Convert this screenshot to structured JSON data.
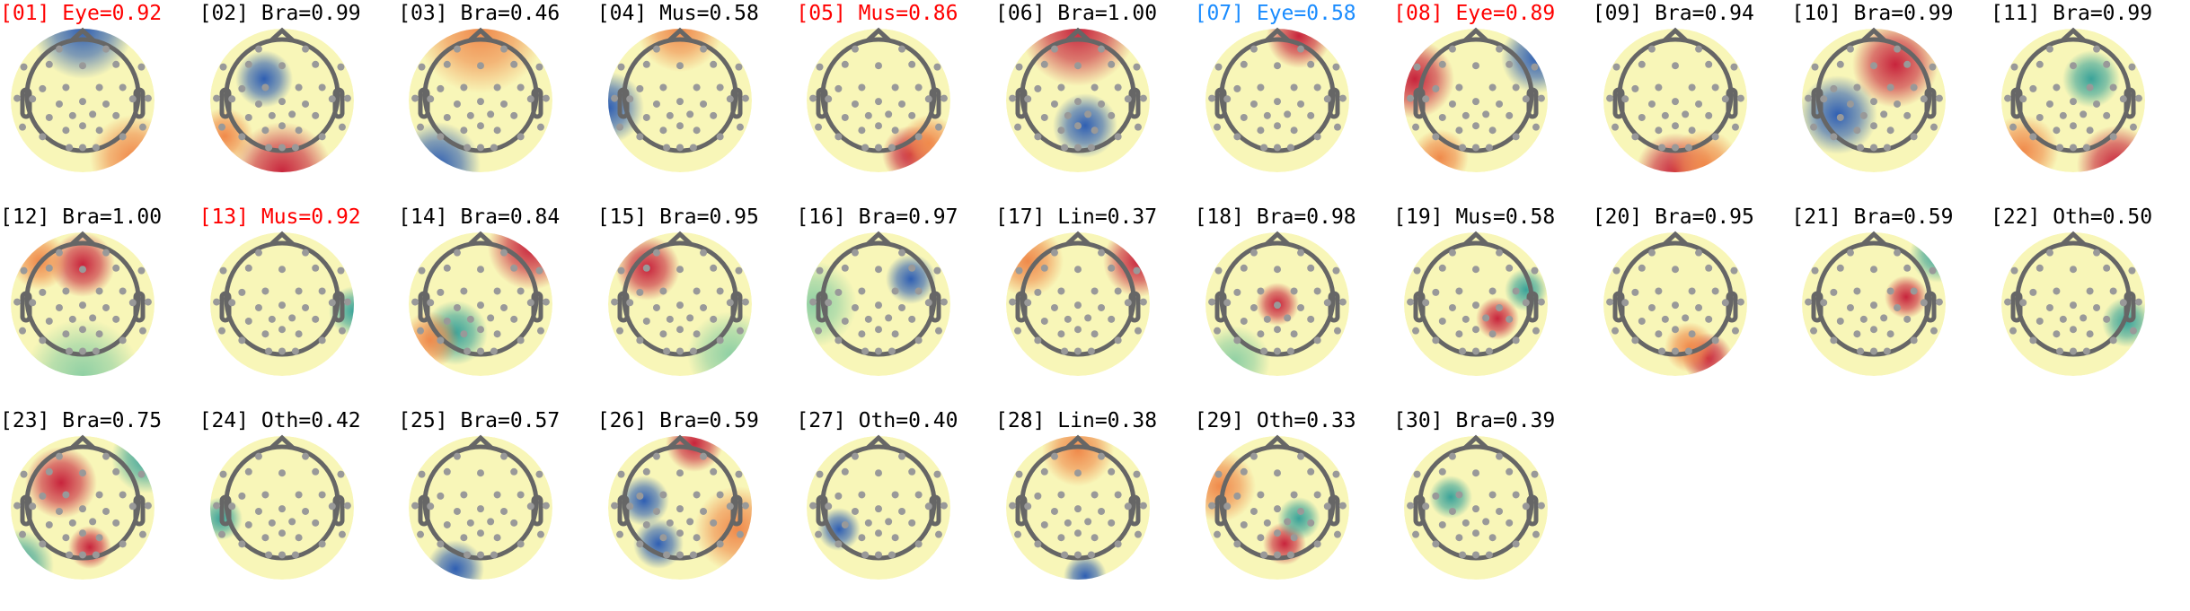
{
  "colors": {
    "default": "#000000",
    "eye_red": "#ff0000",
    "eye_blue": "#1a8cff",
    "muscle_red": "#ff0000"
  },
  "components": [
    {
      "id": "01",
      "label": "Eye",
      "score": "0.92",
      "color": "#ff0000"
    },
    {
      "id": "02",
      "label": "Bra",
      "score": "0.99",
      "color": "#000000"
    },
    {
      "id": "03",
      "label": "Bra",
      "score": "0.46",
      "color": "#000000"
    },
    {
      "id": "04",
      "label": "Mus",
      "score": "0.58",
      "color": "#000000"
    },
    {
      "id": "05",
      "label": "Mus",
      "score": "0.86",
      "color": "#ff0000"
    },
    {
      "id": "06",
      "label": "Bra",
      "score": "1.00",
      "color": "#000000"
    },
    {
      "id": "07",
      "label": "Eye",
      "score": "0.58",
      "color": "#1a8cff"
    },
    {
      "id": "08",
      "label": "Eye",
      "score": "0.89",
      "color": "#ff0000"
    },
    {
      "id": "09",
      "label": "Bra",
      "score": "0.94",
      "color": "#000000"
    },
    {
      "id": "10",
      "label": "Bra",
      "score": "0.99",
      "color": "#000000"
    },
    {
      "id": "11",
      "label": "Bra",
      "score": "0.99",
      "color": "#000000"
    },
    {
      "id": "12",
      "label": "Bra",
      "score": "1.00",
      "color": "#000000"
    },
    {
      "id": "13",
      "label": "Mus",
      "score": "0.92",
      "color": "#ff0000"
    },
    {
      "id": "14",
      "label": "Bra",
      "score": "0.84",
      "color": "#000000"
    },
    {
      "id": "15",
      "label": "Bra",
      "score": "0.95",
      "color": "#000000"
    },
    {
      "id": "16",
      "label": "Bra",
      "score": "0.97",
      "color": "#000000"
    },
    {
      "id": "17",
      "label": "Lin",
      "score": "0.37",
      "color": "#000000"
    },
    {
      "id": "18",
      "label": "Bra",
      "score": "0.98",
      "color": "#000000"
    },
    {
      "id": "19",
      "label": "Mus",
      "score": "0.58",
      "color": "#000000"
    },
    {
      "id": "20",
      "label": "Bra",
      "score": "0.95",
      "color": "#000000"
    },
    {
      "id": "21",
      "label": "Bra",
      "score": "0.59",
      "color": "#000000"
    },
    {
      "id": "22",
      "label": "Oth",
      "score": "0.50",
      "color": "#000000"
    },
    {
      "id": "23",
      "label": "Bra",
      "score": "0.75",
      "color": "#000000"
    },
    {
      "id": "24",
      "label": "Oth",
      "score": "0.42",
      "color": "#000000"
    },
    {
      "id": "25",
      "label": "Bra",
      "score": "0.57",
      "color": "#000000"
    },
    {
      "id": "26",
      "label": "Bra",
      "score": "0.59",
      "color": "#000000"
    },
    {
      "id": "27",
      "label": "Oth",
      "score": "0.40",
      "color": "#000000"
    },
    {
      "id": "28",
      "label": "Lin",
      "score": "0.38",
      "color": "#000000"
    },
    {
      "id": "29",
      "label": "Oth",
      "score": "0.33",
      "color": "#000000"
    },
    {
      "id": "30",
      "label": "Bra",
      "score": "0.39",
      "color": "#000000"
    }
  ]
}
